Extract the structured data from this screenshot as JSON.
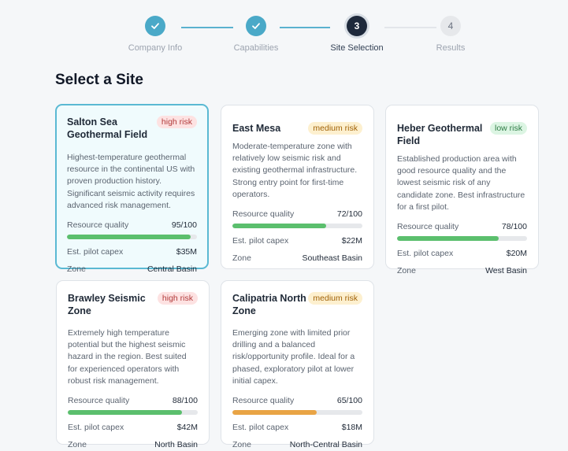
{
  "stepper": {
    "steps": [
      {
        "number": "1",
        "label": "Company Info",
        "state": "done"
      },
      {
        "number": "2",
        "label": "Capabilities",
        "state": "done"
      },
      {
        "number": "3",
        "label": "Site Selection",
        "state": "current"
      },
      {
        "number": "4",
        "label": "Results",
        "state": "todo"
      }
    ],
    "check_icon": "check-icon"
  },
  "page": {
    "title": "Select a Site"
  },
  "labels": {
    "quality": "Resource quality",
    "capex": "Est. pilot capex",
    "zone": "Zone"
  },
  "colors": {
    "accent": "#4aa9c8",
    "high_risk": "#b23b3b",
    "medium_risk": "#a16207",
    "low_risk": "#2f7d46",
    "bar_green": "#5bbf6d",
    "bar_orange": "#e9a445"
  },
  "sites": [
    {
      "name": "Salton Sea Geothermal Field",
      "risk": "high risk",
      "risk_level": "high",
      "selected": true,
      "description": "Highest-temperature geothermal resource in the continental US with proven production history. Significant seismic activity requires advanced risk management.",
      "quality": "95/100",
      "quality_value": 95,
      "bar_color": "green",
      "capex": "$35M",
      "zone": "Central Basin"
    },
    {
      "name": "East Mesa",
      "risk": "medium risk",
      "risk_level": "medium",
      "selected": false,
      "description": "Moderate-temperature zone with relatively low seismic risk and existing geothermal infrastructure. Strong entry point for first-time operators.",
      "quality": "72/100",
      "quality_value": 72,
      "bar_color": "green",
      "capex": "$22M",
      "zone": "Southeast Basin"
    },
    {
      "name": "Heber Geothermal Field",
      "risk": "low risk",
      "risk_level": "low",
      "selected": false,
      "description": "Established production area with good resource quality and the lowest seismic risk of any candidate zone. Best infrastructure for a first pilot.",
      "quality": "78/100",
      "quality_value": 78,
      "bar_color": "green",
      "capex": "$20M",
      "zone": "West Basin"
    },
    {
      "name": "Brawley Seismic Zone",
      "risk": "high risk",
      "risk_level": "high",
      "selected": false,
      "description": "Extremely high temperature potential but the highest seismic hazard in the region. Best suited for experienced operators with robust risk management.",
      "quality": "88/100",
      "quality_value": 88,
      "bar_color": "green",
      "capex": "$42M",
      "zone": "North Basin"
    },
    {
      "name": "Calipatria North Zone",
      "risk": "medium risk",
      "risk_level": "medium",
      "selected": false,
      "description": "Emerging zone with limited prior drilling and a balanced risk/opportunity profile. Ideal for a phased, exploratory pilot at lower initial capex.",
      "quality": "65/100",
      "quality_value": 65,
      "bar_color": "orange",
      "capex": "$18M",
      "zone": "North-Central Basin"
    }
  ]
}
